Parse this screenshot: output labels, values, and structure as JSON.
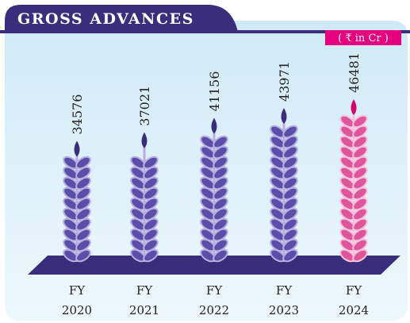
{
  "chart_data": {
    "type": "wheat-bar",
    "title": "GROSS ADVANCES",
    "unit": "( ₹ in Cr )",
    "categories": [
      "FY 2020",
      "FY 2021",
      "FY 2022",
      "FY 2023",
      "FY 2024"
    ],
    "values": [
      34576,
      37021,
      41156,
      43971,
      46481
    ],
    "colors": [
      "#5b4ea8",
      "#5b4ea8",
      "#5b4ea8",
      "#5b4ea8",
      "#e0559a"
    ]
  }
}
